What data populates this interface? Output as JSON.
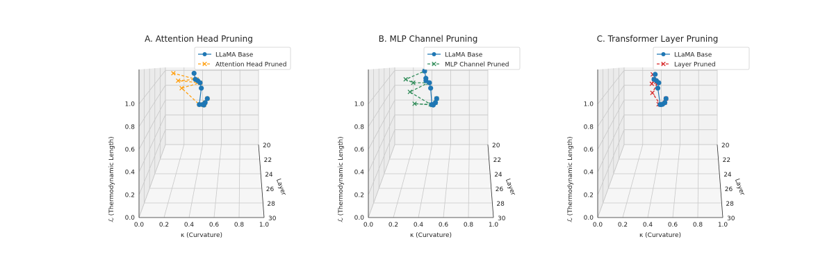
{
  "chart_data": [
    {
      "type": "line3d",
      "title": "A. Attention Head Pruning",
      "xlabel": "κ (Curvature)",
      "ylabel": "Layer",
      "zlabel": "ℒ (Thermodynamic Length)",
      "xlim": [
        0.0,
        1.0
      ],
      "ylim": [
        20,
        30
      ],
      "zlim": [
        0.0,
        1.2
      ],
      "xticks": [
        "0.0",
        "0.2",
        "0.4",
        "0.6",
        "0.8",
        "1.0"
      ],
      "yticks": [
        "20",
        "22",
        "24",
        "26",
        "28",
        "30"
      ],
      "zticks": [
        "0.0",
        "0.2",
        "0.4",
        "0.6",
        "0.8",
        "1.0"
      ],
      "legend_position": "top-right",
      "layers": [
        20,
        21,
        22,
        23,
        24,
        25,
        26,
        27,
        28,
        29
      ],
      "series": [
        {
          "name": "LLaMA Base",
          "color": "#1f77b4",
          "marker": "circle",
          "dash": "solid",
          "x": [
            0.45,
            0.44,
            0.44,
            0.44,
            0.42,
            0.45,
            0.45,
            0.44,
            0.43,
            0.43
          ],
          "z": [
            0.62,
            0.63,
            0.66,
            0.72,
            0.77,
            0.99,
            1.08,
            1.13,
            1.17,
            1.25
          ]
        },
        {
          "name": "Attention Head Pruned",
          "color": "#ff9f0e",
          "marker": "x",
          "dash": "dashed",
          "x": [
            0.45,
            0.44,
            0.44,
            0.44,
            0.42,
            0.27,
            0.45,
            0.27,
            0.44,
            0.26
          ],
          "z": [
            0.62,
            0.63,
            0.66,
            0.72,
            0.77,
            0.99,
            1.08,
            1.13,
            1.17,
            1.25
          ]
        }
      ]
    },
    {
      "type": "line3d",
      "title": "B. MLP Channel Pruning",
      "xlabel": "κ (Curvature)",
      "ylabel": "Layer",
      "zlabel": "ℒ (Thermodynamic Length)",
      "xlim": [
        0.0,
        1.0
      ],
      "ylim": [
        20,
        30
      ],
      "zlim": [
        0.0,
        1.2
      ],
      "xticks": [
        "0.0",
        "0.2",
        "0.4",
        "0.6",
        "0.8",
        "1.0"
      ],
      "yticks": [
        "20",
        "22",
        "24",
        "26",
        "28",
        "30"
      ],
      "zticks": [
        "0.0",
        "0.2",
        "0.4",
        "0.6",
        "0.8",
        "1.0"
      ],
      "legend_position": "top-right",
      "layers": [
        20,
        21,
        22,
        23,
        24,
        25,
        26,
        27,
        28,
        29
      ],
      "series": [
        {
          "name": "LLaMA Base",
          "color": "#1f77b4",
          "marker": "circle",
          "dash": "solid",
          "x": [
            0.45,
            0.45,
            0.44,
            0.44,
            0.45,
            0.45,
            0.45,
            0.43,
            0.44,
            0.44
          ],
          "z": [
            0.62,
            0.63,
            0.66,
            0.72,
            0.77,
            0.99,
            1.08,
            1.13,
            1.18,
            1.27
          ]
        },
        {
          "name": "MLP Channel Pruned",
          "color": "#2e8b57",
          "marker": "x",
          "dash": "dashed",
          "x": [
            0.45,
            0.45,
            0.43,
            0.27,
            0.44,
            0.26,
            0.44,
            0.32,
            0.27,
            0.44
          ],
          "z": [
            0.62,
            0.63,
            0.66,
            0.73,
            0.77,
            0.95,
            1.08,
            1.11,
            1.17,
            1.27
          ]
        }
      ]
    },
    {
      "type": "line3d",
      "title": "C. Transformer Layer Pruning",
      "xlabel": "κ (Curvature)",
      "ylabel": "Layer",
      "zlabel": "ℒ (Thermodynamic Length)",
      "xlim": [
        0.0,
        1.0
      ],
      "ylim": [
        20,
        30
      ],
      "zlim": [
        0.0,
        1.2
      ],
      "xticks": [
        "0.0",
        "0.2",
        "0.4",
        "0.6",
        "0.8",
        "1.0"
      ],
      "yticks": [
        "20",
        "22",
        "24",
        "26",
        "28",
        "30"
      ],
      "zticks": [
        "0.0",
        "0.2",
        "0.4",
        "0.6",
        "0.8",
        "1.0"
      ],
      "legend_position": "top-right",
      "layers": [
        20,
        21,
        22,
        23,
        24,
        25,
        26,
        27,
        28,
        29
      ],
      "series": [
        {
          "name": "LLaMA Base",
          "color": "#1f77b4",
          "marker": "circle",
          "dash": "solid",
          "x": [
            0.45,
            0.45,
            0.44,
            0.44,
            0.44,
            0.43,
            0.45,
            0.44,
            0.43,
            0.45
          ],
          "z": [
            0.62,
            0.63,
            0.67,
            0.72,
            0.77,
            0.99,
            1.08,
            1.13,
            1.17,
            1.24
          ]
        },
        {
          "name": "Layer Pruned",
          "color": "#d62728",
          "marker": "x",
          "dash": "dashed",
          "x": [
            0.45,
            0.45,
            0.4,
            0.44,
            0.44,
            0.38,
            0.44,
            0.4,
            0.43,
            0.43
          ],
          "z": [
            0.62,
            0.63,
            0.67,
            0.72,
            0.77,
            0.94,
            1.08,
            1.1,
            1.17,
            1.24
          ]
        }
      ]
    }
  ]
}
